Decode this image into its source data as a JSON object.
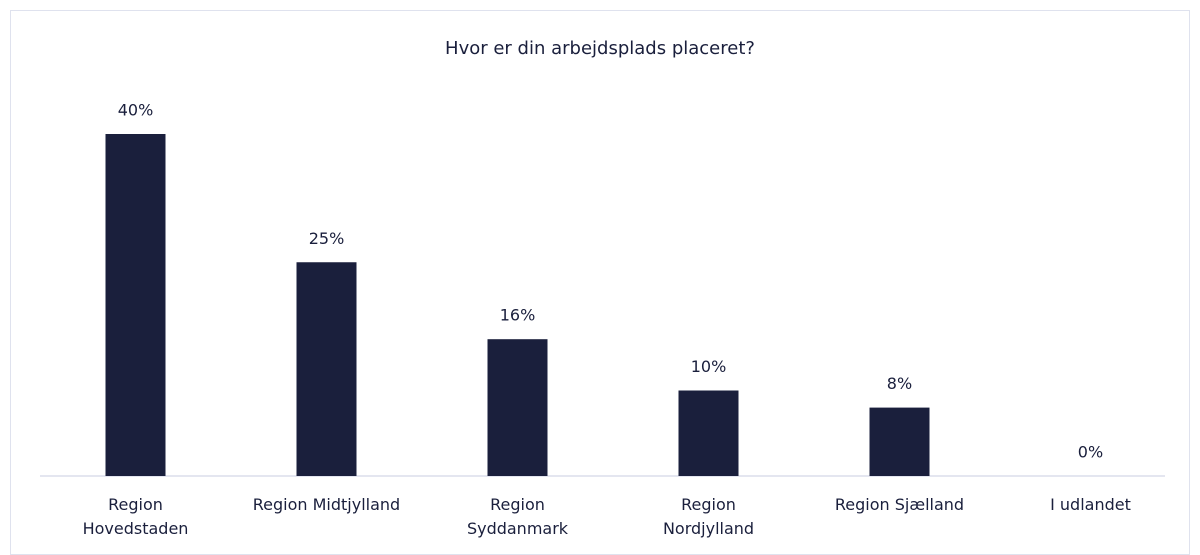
{
  "chart_data": {
    "type": "bar",
    "title": "Hvor er din arbejdsplads placeret?",
    "categories": [
      "Region\nHovedstaden",
      "Region Midtjylland",
      "Region\nSyddanmark",
      "Region\nNordjylland",
      "Region Sjælland",
      "I udlandet"
    ],
    "values": [
      40,
      25,
      16,
      10,
      8,
      0
    ],
    "value_labels": [
      "40%",
      "25%",
      "16%",
      "10%",
      "8%",
      "0%"
    ],
    "color": "#1a1f3c"
  }
}
